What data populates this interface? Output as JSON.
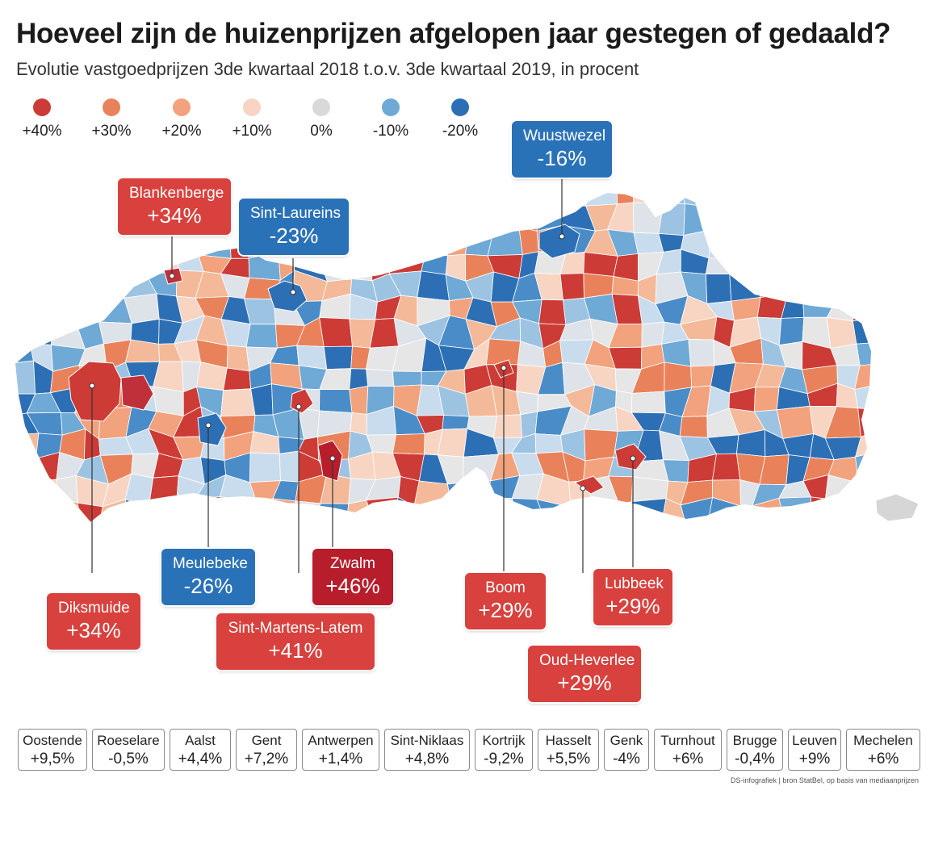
{
  "title": "Hoeveel zijn de huizenprijzen afgelopen jaar gestegen of gedaald?",
  "subtitle": "Evolutie vastgoedprijzen 3de kwartaal 2018 t.o.v. 3de kwartaal 2019, in procent",
  "legend": [
    {
      "label": "+40%",
      "color": "#cc3b36"
    },
    {
      "label": "+30%",
      "color": "#e9825a"
    },
    {
      "label": "+20%",
      "color": "#f2a27c"
    },
    {
      "label": "+10%",
      "color": "#f8d4c3"
    },
    {
      "label": "0%",
      "color": "#d9d9d9"
    },
    {
      "label": "-10%",
      "color": "#6fa9d6"
    },
    {
      "label": "-20%",
      "color": "#2d6fb5"
    }
  ],
  "callouts": [
    {
      "name": "Wuustwezel",
      "value": "-16%",
      "tone": "blue"
    },
    {
      "name": "Blankenberge",
      "value": "+34%",
      "tone": "red"
    },
    {
      "name": "Sint-Laureins",
      "value": "-23%",
      "tone": "blue"
    },
    {
      "name": "Diksmuide",
      "value": "+34%",
      "tone": "red"
    },
    {
      "name": "Meulebeke",
      "value": "-26%",
      "tone": "blue"
    },
    {
      "name": "Zwalm",
      "value": "+46%",
      "tone": "darkred"
    },
    {
      "name": "Sint-Martens-Latem",
      "value": "+41%",
      "tone": "red"
    },
    {
      "name": "Boom",
      "value": "+29%",
      "tone": "red"
    },
    {
      "name": "Lubbeek",
      "value": "+29%",
      "tone": "red"
    },
    {
      "name": "Oud-Heverlee",
      "value": "+29%",
      "tone": "red"
    }
  ],
  "cities": [
    {
      "name": "Oostende",
      "value": "+9,5%"
    },
    {
      "name": "Roeselare",
      "value": "-0,5%"
    },
    {
      "name": "Aalst",
      "value": "+4,4%"
    },
    {
      "name": "Gent",
      "value": "+7,2%"
    },
    {
      "name": "Antwerpen",
      "value": "+1,4%"
    },
    {
      "name": "Sint-Niklaas",
      "value": "+4,8%"
    },
    {
      "name": "Kortrijk",
      "value": "-9,2%"
    },
    {
      "name": "Hasselt",
      "value": "+5,5%"
    },
    {
      "name": "Genk",
      "value": "-4%"
    },
    {
      "name": "Turnhout",
      "value": "+6%"
    },
    {
      "name": "Brugge",
      "value": "-0,4%"
    },
    {
      "name": "Leuven",
      "value": "+9%"
    },
    {
      "name": "Mechelen",
      "value": "+6%"
    }
  ],
  "source": "DS-infografiek | bron StatBel, op basis van mediaanprijzen",
  "map_palette": [
    "#cc3b36",
    "#e9825a",
    "#f2a27c",
    "#f8d4c3",
    "#dde3e8",
    "#c9dcee",
    "#9dc3e3",
    "#6fa9d6",
    "#4a8cc8",
    "#2d6fb5",
    "#f4b999",
    "#e6e6e6"
  ]
}
